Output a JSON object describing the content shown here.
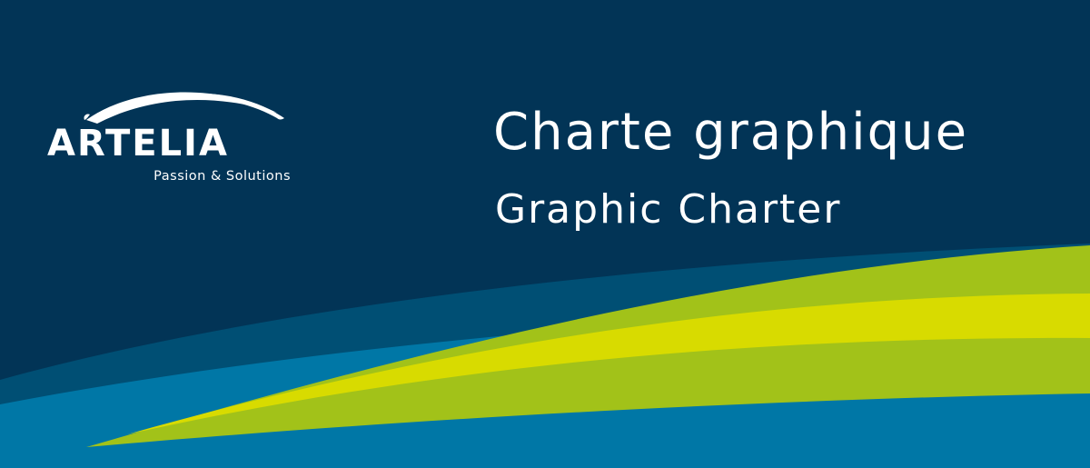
{
  "colors": {
    "background": "#023456",
    "band_dark_blue": "#004f74",
    "band_blue": "#0077a6",
    "band_green": "#a2c219",
    "band_yellow": "#d8db00",
    "text": "#ffffff"
  },
  "logo": {
    "wordmark": "ARTELIA",
    "tagline": "Passion & Solutions",
    "icon": "arc-swoosh-icon"
  },
  "heading": {
    "title": "Charte graphique",
    "subtitle": "Graphic Charter"
  }
}
